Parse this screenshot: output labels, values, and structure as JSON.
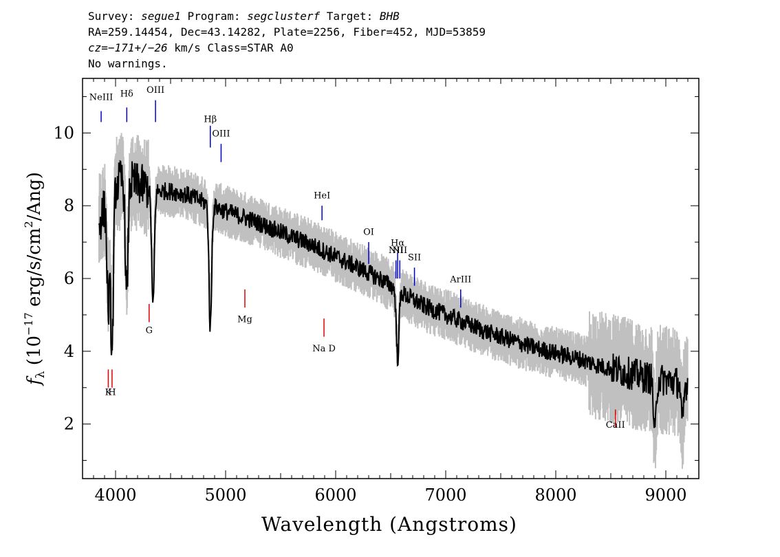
{
  "header": {
    "line1": {
      "survey_label": "Survey: ",
      "survey": "segue1",
      "program_label": " Program: ",
      "program": "segclusterf",
      "target_label": " Target: ",
      "target": "BHB"
    },
    "line2": "RA=259.14454, Dec=43.14282, Plate=2256, Fiber=452, MJD=53859",
    "line3": {
      "cz_label": "cz=",
      "cz_value": "−171+/−26",
      "cz_unit": " km/s Class=STAR A0"
    },
    "line4": "No warnings."
  },
  "chart_data": {
    "type": "line",
    "xlabel": "Wavelength (Angstroms)",
    "ylabel": "fλ (10⁻¹⁷ erg/s/cm²/Ang)",
    "xlim": [
      3700,
      9300
    ],
    "ylim": [
      0.5,
      11.5
    ],
    "x_ticks": [
      4000,
      5000,
      6000,
      7000,
      8000,
      9000
    ],
    "y_ticks": [
      2,
      4,
      6,
      8,
      10
    ],
    "grid": false,
    "colors": {
      "flux": "#000000",
      "noise_band": "#c0c0c0",
      "emission": "#0000cc",
      "absorption": "#dd0000"
    },
    "series": [
      {
        "x": [
          3850,
          3950,
          4050,
          4200,
          4350,
          4500,
          4650,
          4800,
          5000,
          5200,
          5400,
          5600,
          5800,
          6000,
          6200,
          6400,
          6600,
          6800,
          7000,
          7200,
          7400,
          7600,
          7800,
          8000,
          8200,
          8400,
          8600,
          8800,
          9000,
          9200
        ],
        "y": [
          7.5,
          8.4,
          8.7,
          8.6,
          8.4,
          8.4,
          8.3,
          8.1,
          7.85,
          7.65,
          7.4,
          7.15,
          6.9,
          6.6,
          6.3,
          6.0,
          5.6,
          5.25,
          5.0,
          4.75,
          4.5,
          4.3,
          4.1,
          3.95,
          3.8,
          3.6,
          3.45,
          3.3,
          3.2,
          3.1
        ]
      }
    ],
    "absorption_dips": [
      {
        "x": 3934,
        "y": 5.2
      },
      {
        "x": 3968,
        "y": 3.9
      },
      {
        "x": 4101,
        "y": 5.4
      },
      {
        "x": 4340,
        "y": 5.2
      },
      {
        "x": 4861,
        "y": 4.6
      },
      {
        "x": 6563,
        "y": 3.8
      },
      {
        "x": 8900,
        "y": 1.7
      },
      {
        "x": 9150,
        "y": 2.0
      }
    ],
    "emission_lines": [
      {
        "label": "NeIII",
        "x": 3869,
        "label_y": 10.9,
        "tick_top": 10.6,
        "tick_bottom": 10.3
      },
      {
        "label": "Hδ",
        "x": 4102,
        "label_y": 11.0,
        "tick_top": 10.7,
        "tick_bottom": 10.3
      },
      {
        "label": "OIII",
        "x": 4363,
        "label_y": 11.1,
        "tick_top": 10.9,
        "tick_bottom": 10.3
      },
      {
        "label": "Hβ",
        "x": 4861,
        "label_y": 10.3,
        "tick_top": 10.2,
        "tick_bottom": 9.6
      },
      {
        "label": "OIII",
        "x": 4959,
        "label_y": 9.9,
        "tick_top": 9.7,
        "tick_bottom": 9.2
      },
      {
        "label": "HeI",
        "x": 5876,
        "label_y": 8.2,
        "tick_top": 8.0,
        "tick_bottom": 7.6
      },
      {
        "label": "OI",
        "x": 6300,
        "label_y": 7.2,
        "tick_top": 7.0,
        "tick_bottom": 6.4
      },
      {
        "label": "NII",
        "x": 6548,
        "label_y": 6.7,
        "tick_top": 6.5,
        "tick_bottom": 6.0
      },
      {
        "label": "Hα",
        "x": 6563,
        "label_y": 6.9,
        "tick_top": 6.7,
        "tick_bottom": 6.0
      },
      {
        "label": "NII",
        "x": 6583,
        "label_y": 6.7,
        "tick_top": 6.5,
        "tick_bottom": 6.0
      },
      {
        "label": "SII",
        "x": 6716,
        "label_y": 6.5,
        "tick_top": 6.3,
        "tick_bottom": 5.8
      },
      {
        "label": "ArIII",
        "x": 7136,
        "label_y": 5.9,
        "tick_top": 5.7,
        "tick_bottom": 5.2
      }
    ],
    "absorption_lines": [
      {
        "label": "K",
        "x": 3934,
        "label_y": 2.8,
        "tick_top": 3.5,
        "tick_bottom": 3.0
      },
      {
        "label": "H",
        "x": 3968,
        "label_y": 2.8,
        "tick_top": 3.5,
        "tick_bottom": 3.0
      },
      {
        "label": "G",
        "x": 4305,
        "label_y": 4.5,
        "tick_top": 5.3,
        "tick_bottom": 4.8
      },
      {
        "label": "Mg",
        "x": 5175,
        "label_y": 4.8,
        "tick_top": 5.7,
        "tick_bottom": 5.2
      },
      {
        "label": "Na D",
        "x": 5894,
        "label_y": 4.0,
        "tick_top": 4.9,
        "tick_bottom": 4.4
      },
      {
        "label": "CaII",
        "x": 8542,
        "label_y": 1.9,
        "tick_top": 2.4,
        "tick_bottom": 1.9
      }
    ]
  }
}
